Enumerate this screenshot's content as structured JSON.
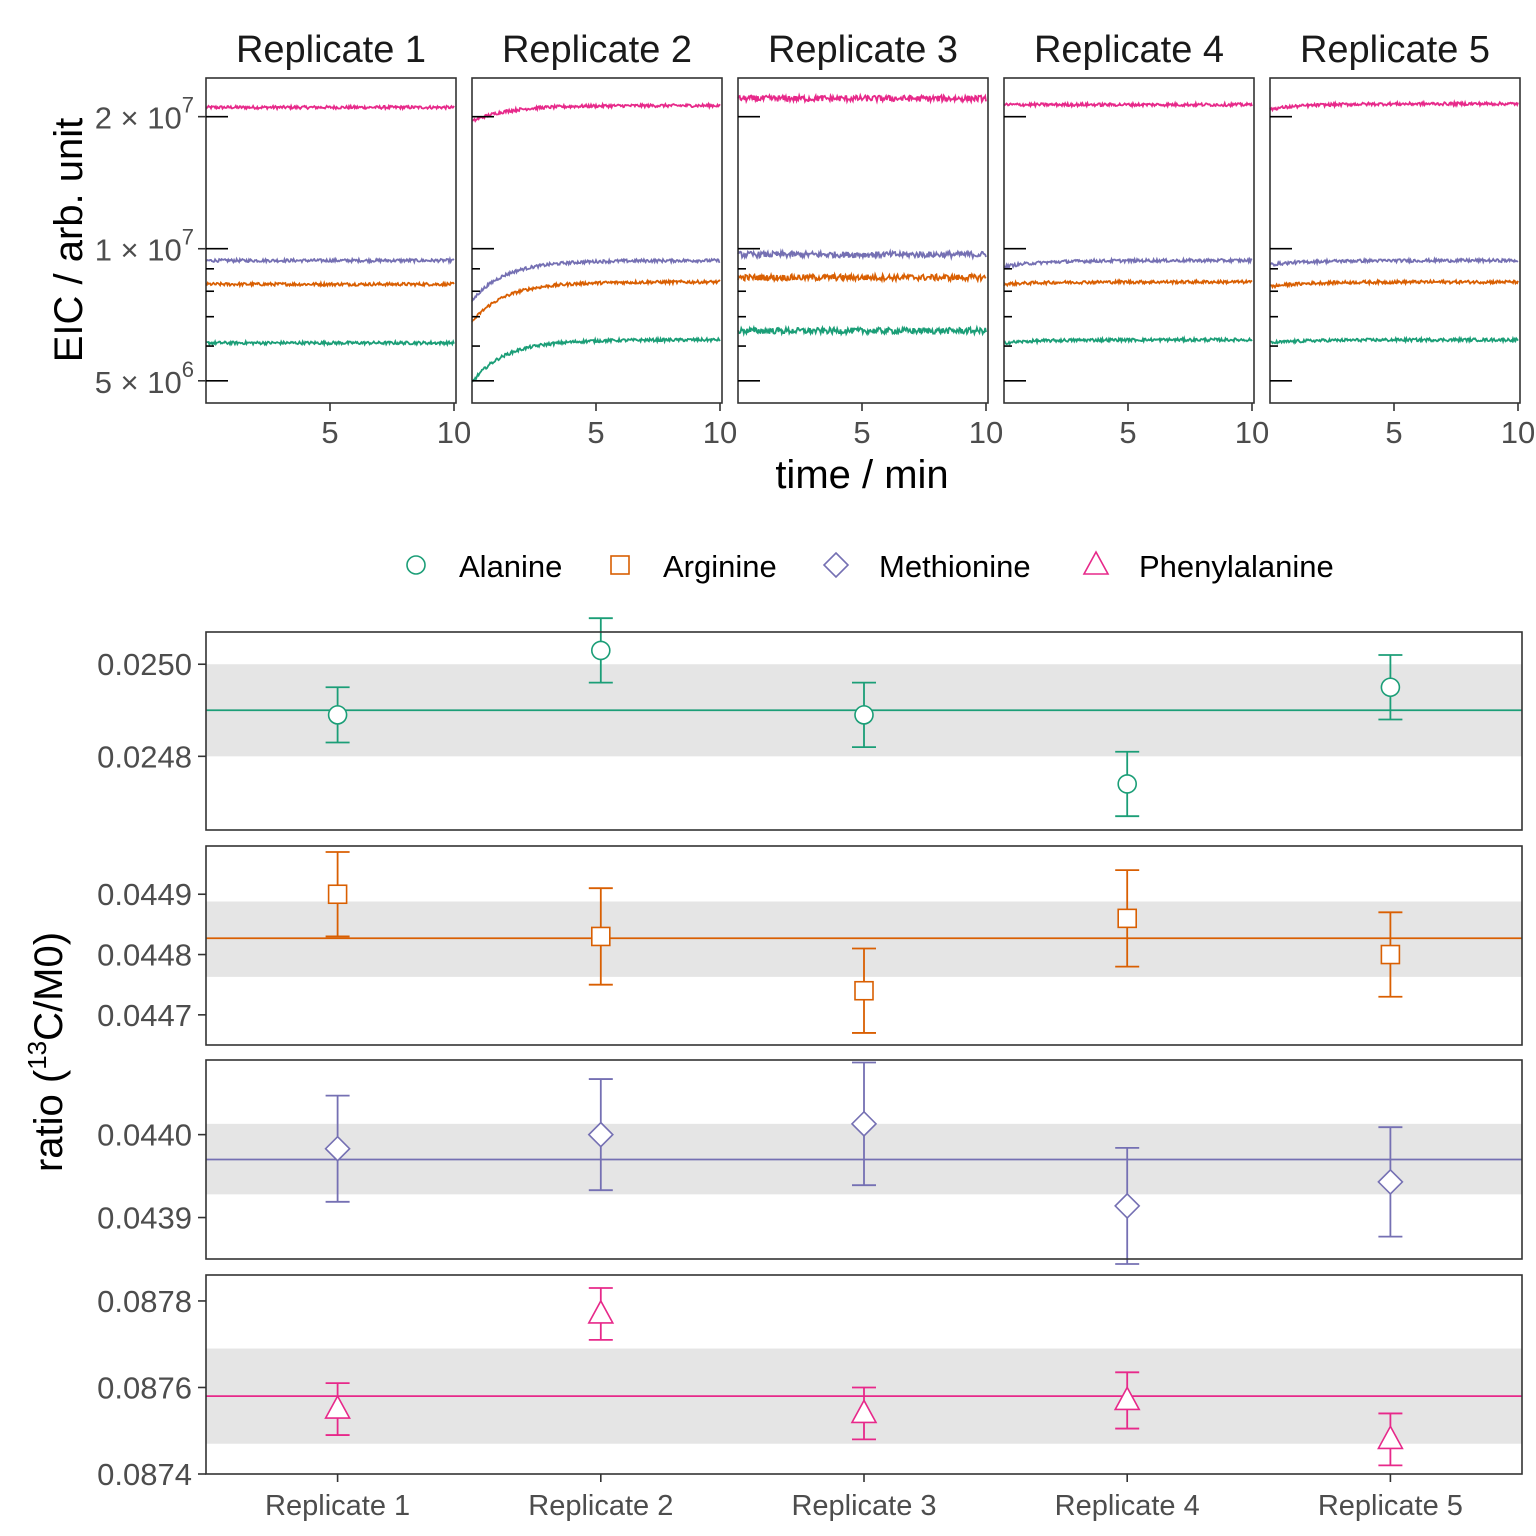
{
  "colors": {
    "Alanine": "#1b9e77",
    "Arginine": "#d95f02",
    "Methionine": "#7570b3",
    "Phenylalanine": "#e7298a",
    "band": "#e5e5e5"
  },
  "chart_data": [
    {
      "type": "line",
      "facets": [
        "Replicate 1",
        "Replicate 2",
        "Replicate 3",
        "Replicate 4",
        "Replicate 5"
      ],
      "xlabel": "time / min",
      "ylabel": "EIC / arb. unit",
      "xlim": [
        0,
        10
      ],
      "xticks": [
        "5",
        "10"
      ],
      "y_scale": "log",
      "yticks": [
        {
          "value": 5000000,
          "mant": "5",
          "exp": "6"
        },
        {
          "value": 10000000,
          "mant": "1",
          "exp": "7"
        },
        {
          "value": 20000000,
          "mant": "2",
          "exp": "7"
        }
      ],
      "series": [
        {
          "name": "Phenylalanine",
          "levels": [
            21000000,
            21200000,
            22000000,
            21300000,
            21400000
          ],
          "start": [
            21000000,
            19500000,
            22000000,
            21300000,
            20800000
          ]
        },
        {
          "name": "Methionine",
          "levels": [
            9400000,
            9400000,
            9700000,
            9400000,
            9400000
          ],
          "start": [
            9400000,
            7600000,
            9700000,
            9100000,
            9200000
          ]
        },
        {
          "name": "Arginine",
          "levels": [
            8300000,
            8400000,
            8600000,
            8400000,
            8400000
          ],
          "start": [
            8300000,
            6800000,
            8600000,
            8300000,
            8200000
          ]
        },
        {
          "name": "Alanine",
          "levels": [
            6100000,
            6200000,
            6500000,
            6200000,
            6200000
          ],
          "start": [
            6100000,
            4950000,
            6500000,
            6100000,
            6100000
          ]
        }
      ]
    },
    {
      "type": "scatter",
      "categories": [
        "Replicate 1",
        "Replicate 2",
        "Replicate 3",
        "Replicate 4",
        "Replicate 5"
      ],
      "ylabel_main": "ratio (",
      "ylabel_sup": "13",
      "ylabel_rest": "C/M0)",
      "legend_position": "top",
      "panels": [
        {
          "name": "Alanine",
          "shape": "circle",
          "ylim": [
            0.02464,
            0.02507
          ],
          "yticks": [
            "0.0248",
            "0.0250"
          ],
          "ytick_values": [
            0.0248,
            0.025
          ],
          "values": [
            0.02489,
            0.02503,
            0.02489,
            0.02474,
            0.02495
          ],
          "err": [
            6e-05,
            7e-05,
            7e-05,
            7e-05,
            7e-05
          ],
          "mean": 0.0249,
          "band": [
            0.0248,
            0.025
          ]
        },
        {
          "name": "Arginine",
          "shape": "square",
          "ylim": [
            0.04465,
            0.04498
          ],
          "yticks": [
            "0.0447",
            "0.0448",
            "0.0449"
          ],
          "ytick_values": [
            0.0447,
            0.0448,
            0.0449
          ],
          "values": [
            0.0449,
            0.04483,
            0.04474,
            0.04486,
            0.0448
          ],
          "err": [
            7e-05,
            8e-05,
            7e-05,
            8e-05,
            7e-05
          ],
          "mean": 0.044827,
          "band": [
            0.044763,
            0.044888
          ]
        },
        {
          "name": "Methionine",
          "shape": "diamond",
          "ylim": [
            0.04385,
            0.04409
          ],
          "yticks": [
            "0.0439",
            "0.0440"
          ],
          "ytick_values": [
            0.0439,
            0.044
          ],
          "values": [
            0.043983,
            0.044,
            0.044013,
            0.043914,
            0.043943
          ],
          "err": [
            6.4e-05,
            6.7e-05,
            7.4e-05,
            7e-05,
            6.6e-05
          ],
          "mean": 0.04397,
          "band": [
            0.043928,
            0.044013
          ]
        },
        {
          "name": "Phenylalanine",
          "shape": "triangle",
          "ylim": [
            0.0874,
            0.08786
          ],
          "yticks": [
            "0.0874",
            "0.0876",
            "0.0878"
          ],
          "ytick_values": [
            0.0874,
            0.0876,
            0.0878
          ],
          "values": [
            0.08755,
            0.08777,
            0.08754,
            0.08757,
            0.08748
          ],
          "err": [
            6e-05,
            6e-05,
            6e-05,
            6.5e-05,
            6e-05
          ],
          "mean": 0.08758,
          "band": [
            0.08747,
            0.08769
          ]
        }
      ]
    }
  ]
}
